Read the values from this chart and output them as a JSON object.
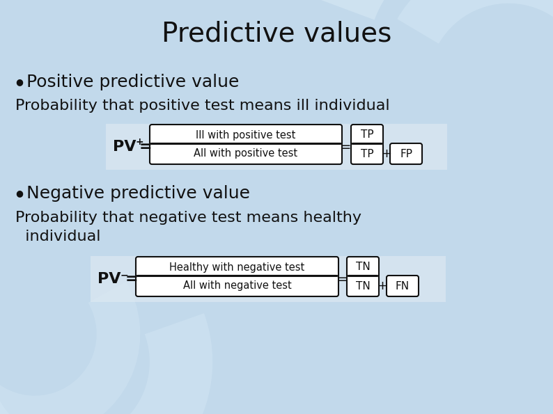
{
  "title": "Predictive values",
  "title_fontsize": 28,
  "bg_color": "#c2d9eb",
  "bullet1_header": "Positive predictive value",
  "bullet1_sub": "Probability that positive test means ill individual",
  "bullet2_header": "Negative predictive value",
  "bullet2_sub_line1": "Probability that negative test means healthy",
  "bullet2_sub_line2": "  individual",
  "formula1_pv": "PV",
  "formula1_num": "Ill with positive test",
  "formula1_den": "All with positive test",
  "formula1_tp_num": "TP",
  "formula1_tp_den": "TP",
  "formula1_fp": "FP",
  "formula2_pv": "PV",
  "formula2_num": "Healthy with negative test",
  "formula2_den": "All with negative test",
  "formula2_tn_num": "TN",
  "formula2_tn_den": "TN",
  "formula2_fn": "FN",
  "text_color": "#111111",
  "box_facecolor": "#ffffff",
  "box_edgecolor": "#111111",
  "formula_bg": "#e8f0f8"
}
